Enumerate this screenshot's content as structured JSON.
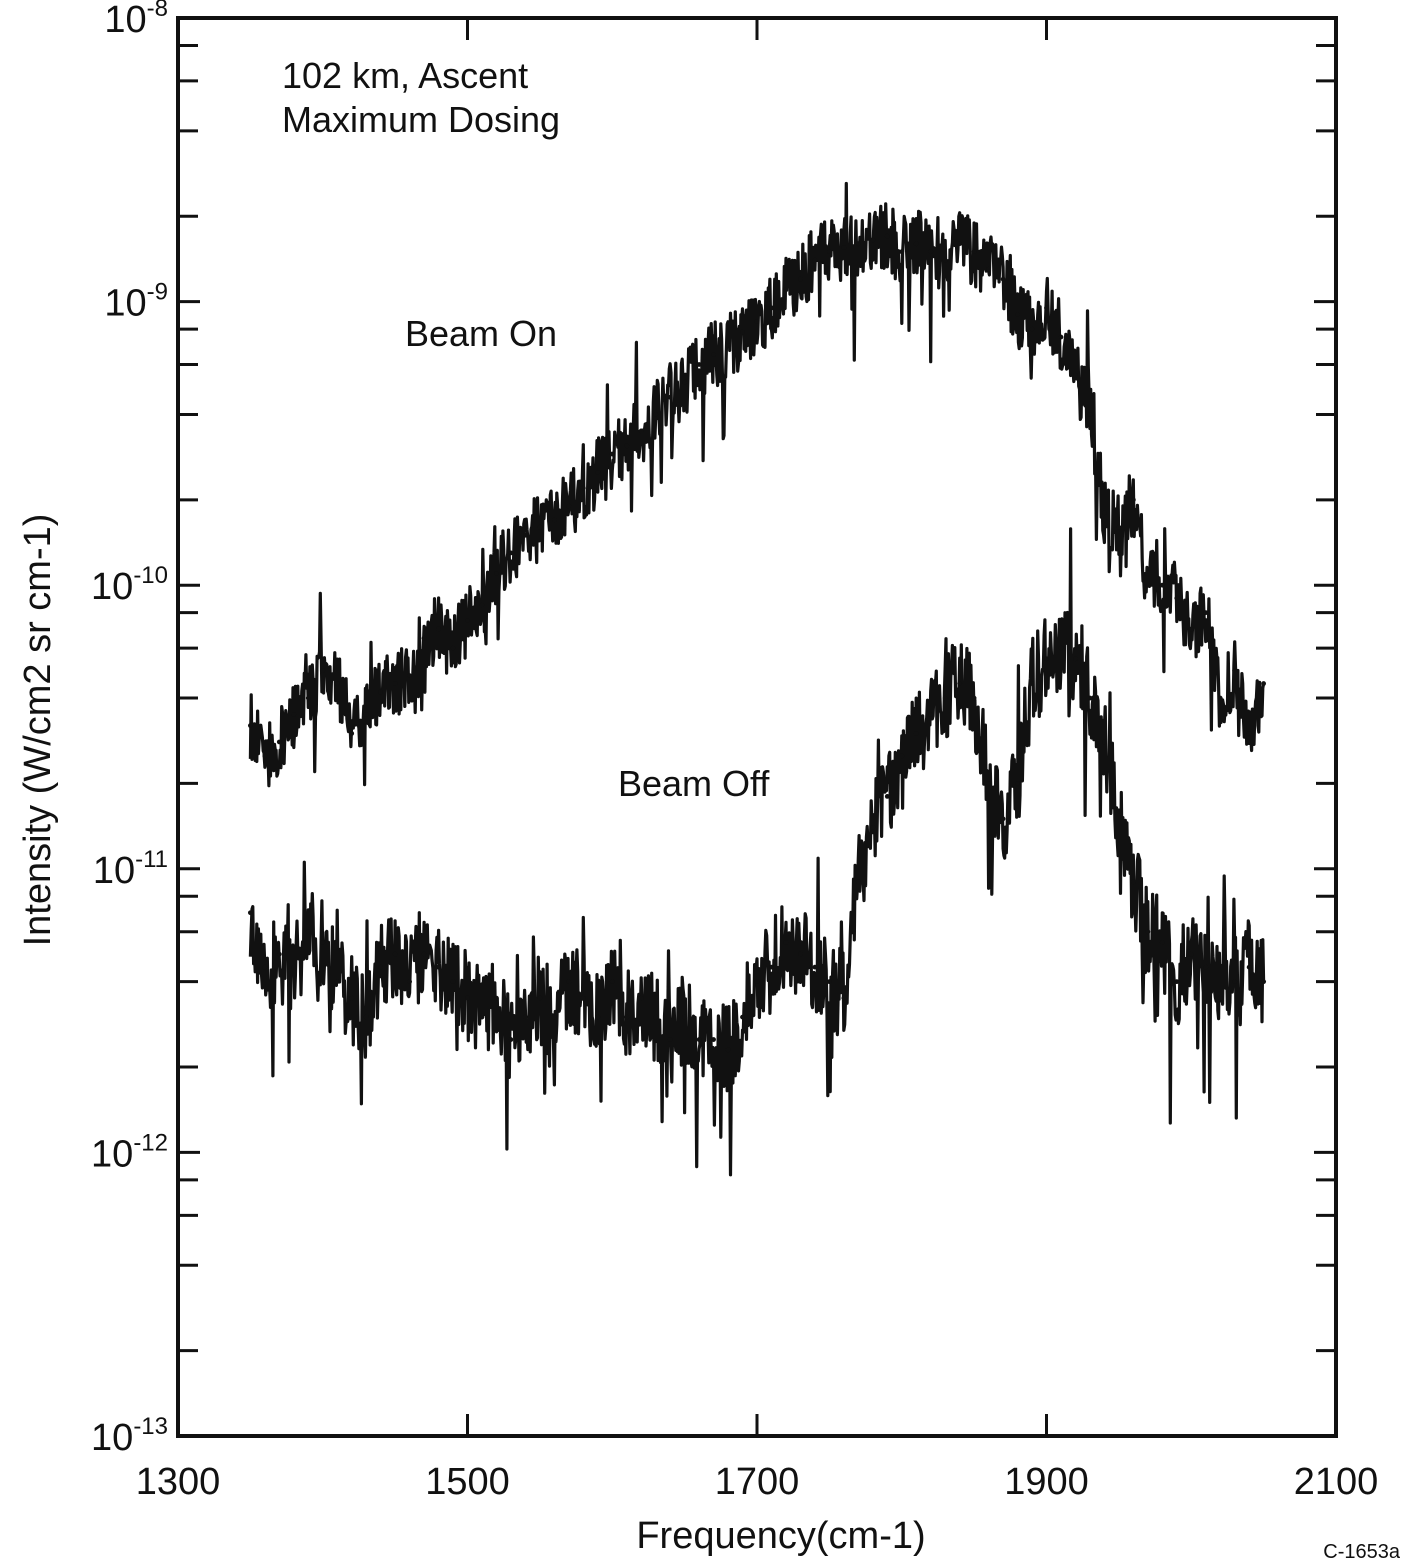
{
  "chart_data": {
    "type": "line",
    "title": "",
    "annotation_lines": [
      "102 km, Ascent",
      "Maximum Dosing"
    ],
    "xlabel": "Frequency(cm-1)",
    "ylabel": "Intensity (W/cm2 sr cm-1)",
    "xlim": [
      1300,
      2100
    ],
    "ylim": [
      1e-13,
      1e-08
    ],
    "y_scale": "log",
    "grid": false,
    "x_ticks": [
      {
        "value": 1300,
        "label": "1300"
      },
      {
        "value": 1500,
        "label": "1500"
      },
      {
        "value": 1700,
        "label": "1700"
      },
      {
        "value": 1900,
        "label": "1900"
      },
      {
        "value": 2100,
        "label": "2100"
      }
    ],
    "y_ticks": [
      {
        "exp": -8,
        "label_base": "10",
        "label_exp": "-8"
      },
      {
        "exp": -9,
        "label_base": "10",
        "label_exp": "-9"
      },
      {
        "exp": -10,
        "label_base": "10",
        "label_exp": "-10"
      },
      {
        "exp": -11,
        "label_base": "10",
        "label_exp": "-11"
      },
      {
        "exp": -12,
        "label_base": "10",
        "label_exp": "-12"
      },
      {
        "exp": -13,
        "label_base": "10",
        "label_exp": "-13"
      }
    ],
    "footer_text": "C-1653a",
    "series": [
      {
        "name": "Beam On",
        "color": "#111111",
        "x": [
          1350,
          1360,
          1370,
          1380,
          1390,
          1400,
          1410,
          1420,
          1430,
          1440,
          1450,
          1460,
          1470,
          1480,
          1490,
          1500,
          1510,
          1520,
          1530,
          1540,
          1550,
          1560,
          1570,
          1580,
          1590,
          1600,
          1610,
          1620,
          1630,
          1640,
          1650,
          1660,
          1670,
          1680,
          1690,
          1700,
          1710,
          1720,
          1730,
          1740,
          1750,
          1760,
          1770,
          1780,
          1790,
          1800,
          1810,
          1820,
          1830,
          1840,
          1850,
          1860,
          1870,
          1880,
          1890,
          1900,
          1910,
          1920,
          1930,
          1940,
          1950,
          1960,
          1970,
          1980,
          1990,
          2000,
          2010,
          2020,
          2030,
          2040,
          2050
        ],
        "y": [
          3.2e-11,
          2.5e-11,
          2.8e-11,
          3.5e-11,
          4e-11,
          5e-11,
          4.5e-11,
          3e-11,
          3.5e-11,
          4.2e-11,
          4.5e-11,
          4.8e-11,
          6.5e-11,
          7e-11,
          6e-11,
          7.5e-11,
          8.5e-11,
          1.1e-10,
          1.3e-10,
          1.5e-10,
          1.6e-10,
          1.7e-10,
          1.9e-10,
          2.2e-10,
          2.5e-10,
          2.9e-10,
          3.1e-10,
          3.5e-10,
          4e-10,
          4.6e-10,
          5.2e-10,
          6e-10,
          6.5e-10,
          7e-10,
          7.8e-10,
          8.5e-10,
          9.5e-10,
          1.1e-09,
          1.2e-09,
          1.4e-09,
          1.5e-09,
          1.55e-09,
          1.6e-09,
          1.65e-09,
          1.7e-09,
          1.5e-09,
          1.6e-09,
          1.5e-09,
          1.4e-09,
          1.6e-09,
          1.5e-09,
          1.3e-09,
          1.2e-09,
          9e-10,
          8e-10,
          9.5e-10,
          7.5e-10,
          5.5e-10,
          4e-10,
          1.8e-10,
          1.6e-10,
          2e-10,
          1e-10,
          1e-10,
          9e-11,
          7e-11,
          8e-11,
          4e-11,
          5e-11,
          3e-11,
          4.5e-11
        ]
      },
      {
        "name": "Beam Off",
        "color": "#111111",
        "x": [
          1350,
          1360,
          1370,
          1380,
          1390,
          1400,
          1410,
          1420,
          1430,
          1440,
          1450,
          1460,
          1470,
          1480,
          1490,
          1500,
          1510,
          1520,
          1530,
          1540,
          1550,
          1560,
          1570,
          1580,
          1590,
          1600,
          1610,
          1620,
          1630,
          1640,
          1650,
          1660,
          1670,
          1680,
          1690,
          1700,
          1710,
          1720,
          1730,
          1740,
          1750,
          1760,
          1770,
          1780,
          1790,
          1800,
          1810,
          1820,
          1830,
          1840,
          1850,
          1860,
          1870,
          1880,
          1890,
          1900,
          1910,
          1920,
          1930,
          1940,
          1950,
          1960,
          1970,
          1980,
          1990,
          2000,
          2010,
          2020,
          2030,
          2040,
          2050
        ],
        "y": [
          7e-12,
          4.5e-12,
          5e-12,
          4.5e-12,
          6e-12,
          5.5e-12,
          4e-12,
          3.5e-12,
          3e-12,
          4.5e-12,
          5e-12,
          4e-12,
          5e-12,
          4.5e-12,
          4e-12,
          3.5e-12,
          3e-12,
          3.5e-12,
          2.5e-12,
          3e-12,
          3.5e-12,
          3e-12,
          4e-12,
          3.5e-12,
          3e-12,
          4e-12,
          3e-12,
          3.5e-12,
          3e-12,
          2.5e-12,
          3e-12,
          2.5e-12,
          2.5e-12,
          2.3e-12,
          3e-12,
          4e-12,
          4.5e-12,
          5.5e-12,
          5e-12,
          4.5e-12,
          4e-12,
          3.5e-12,
          9e-12,
          1.4e-11,
          1.8e-11,
          2.5e-11,
          3e-11,
          3.5e-11,
          4e-11,
          4.5e-11,
          4e-11,
          2e-11,
          1.5e-11,
          2e-11,
          4.5e-11,
          5.5e-11,
          6e-11,
          5.5e-11,
          4e-11,
          2.8e-11,
          1.6e-11,
          9e-12,
          6e-12,
          5.5e-12,
          4e-12,
          5e-12,
          4.5e-12,
          3.5e-12,
          4e-12,
          4.5e-12,
          4e-12
        ]
      }
    ]
  }
}
